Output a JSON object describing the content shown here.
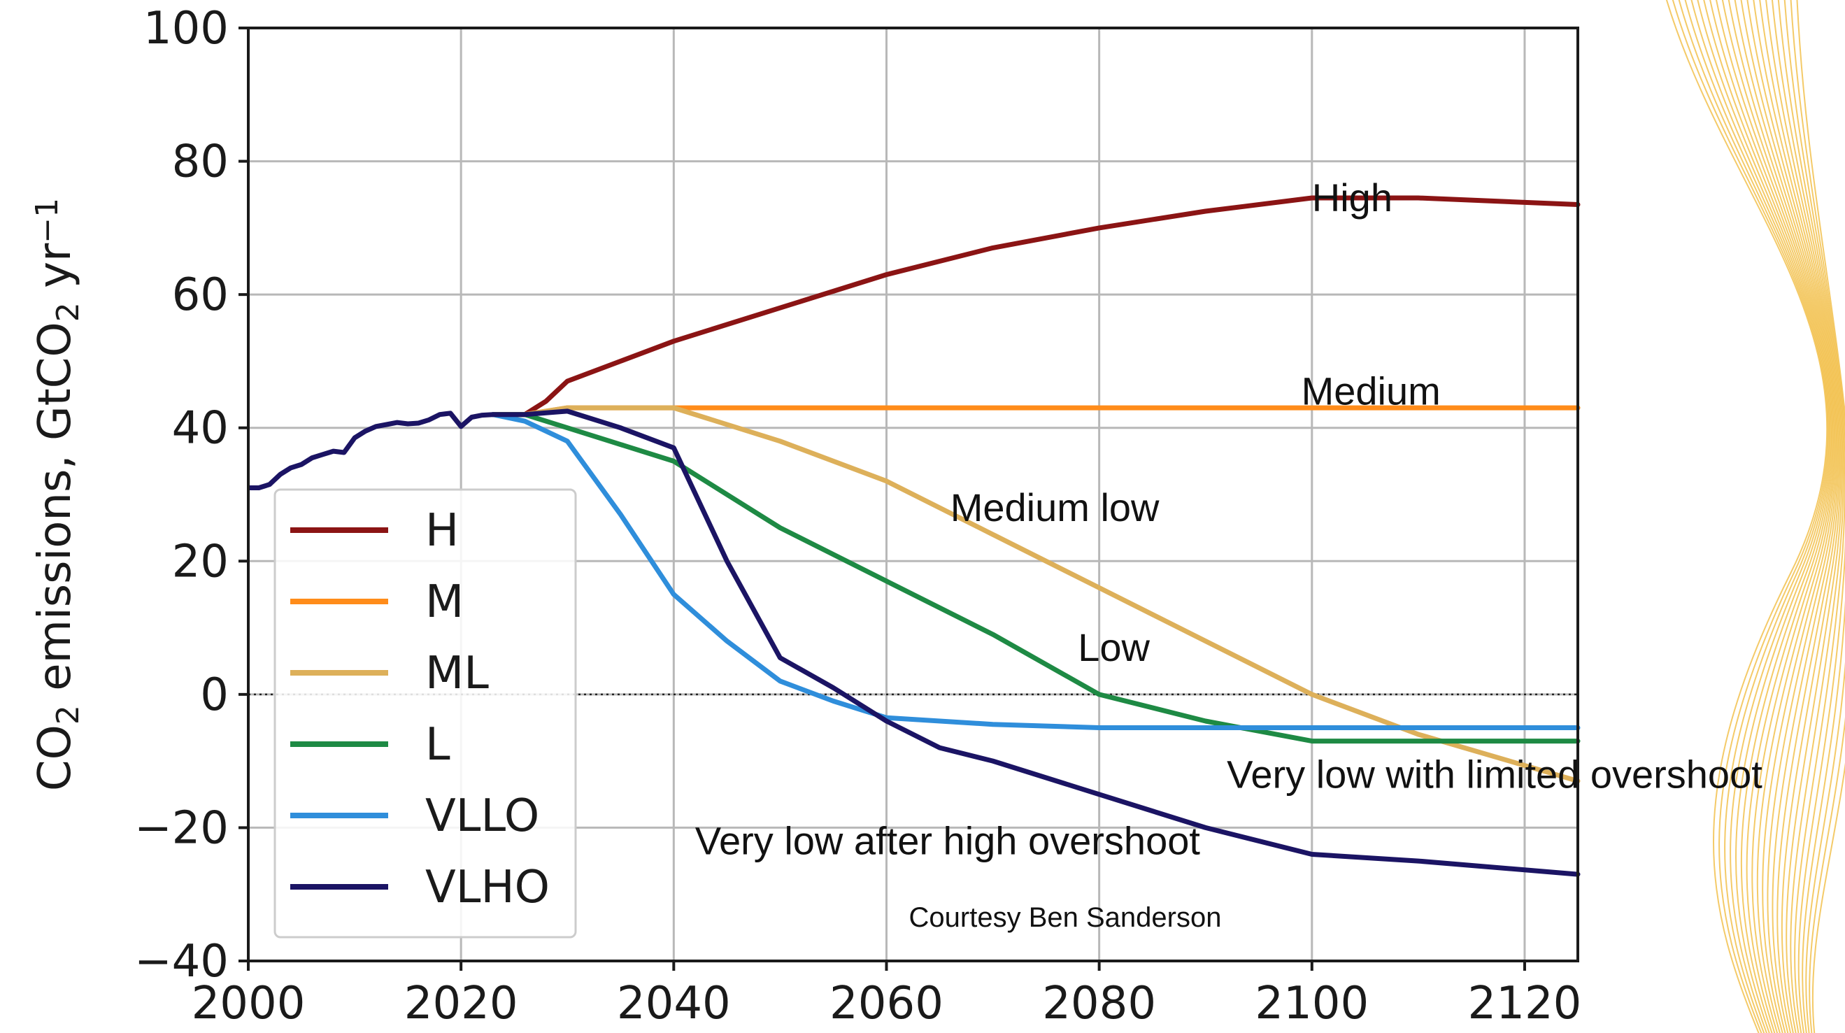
{
  "chart_data": {
    "type": "line",
    "title": "",
    "xlabel": "",
    "ylabel": "CO₂ emissions, GtCO₂ yr⁻¹",
    "ylabel_parts": [
      "CO",
      "2",
      " emissions, GtCO",
      "2",
      " yr",
      "−1"
    ],
    "xlim": [
      2000,
      2125
    ],
    "ylim": [
      -40,
      100
    ],
    "x_ticks": [
      2000,
      2020,
      2040,
      2060,
      2080,
      2100,
      2120
    ],
    "y_ticks": [
      -40,
      -20,
      0,
      20,
      40,
      60,
      80,
      100
    ],
    "x_tick_labels": [
      "2000",
      "2020",
      "2040",
      "2060",
      "2080",
      "2100",
      "2120"
    ],
    "y_tick_labels": [
      "−40",
      "−20",
      "0",
      "20",
      "40",
      "60",
      "80",
      "100"
    ],
    "grid": true,
    "zero_line": "dotted",
    "legend_position": "lower-left",
    "historical": {
      "color": "#1b1464",
      "points": [
        [
          2000,
          31
        ],
        [
          2001,
          31
        ],
        [
          2002,
          31.5
        ],
        [
          2003,
          33
        ],
        [
          2004,
          34
        ],
        [
          2005,
          34.5
        ],
        [
          2006,
          35.5
        ],
        [
          2007,
          36
        ],
        [
          2008,
          36.5
        ],
        [
          2009,
          36.3
        ],
        [
          2010,
          38.5
        ],
        [
          2011,
          39.5
        ],
        [
          2012,
          40.2
        ],
        [
          2013,
          40.5
        ],
        [
          2014,
          40.8
        ],
        [
          2015,
          40.6
        ],
        [
          2016,
          40.7
        ],
        [
          2017,
          41.2
        ],
        [
          2018,
          42
        ],
        [
          2019,
          42.2
        ],
        [
          2020,
          40.2
        ],
        [
          2021,
          41.6
        ],
        [
          2022,
          41.9
        ],
        [
          2023,
          42
        ]
      ]
    },
    "series": [
      {
        "name": "H",
        "color": "#8b1414",
        "points": [
          [
            2023,
            42
          ],
          [
            2026,
            42
          ],
          [
            2028,
            44
          ],
          [
            2030,
            47
          ],
          [
            2035,
            50
          ],
          [
            2040,
            53
          ],
          [
            2050,
            58
          ],
          [
            2060,
            63
          ],
          [
            2070,
            67
          ],
          [
            2080,
            70
          ],
          [
            2090,
            72.5
          ],
          [
            2100,
            74.5
          ],
          [
            2110,
            74.5
          ],
          [
            2125,
            73.5
          ]
        ]
      },
      {
        "name": "M",
        "color": "#ff8c1a",
        "points": [
          [
            2023,
            42
          ],
          [
            2026,
            42
          ],
          [
            2030,
            43
          ],
          [
            2125,
            43
          ]
        ]
      },
      {
        "name": "ML",
        "color": "#ddb05a",
        "points": [
          [
            2023,
            42
          ],
          [
            2026,
            42
          ],
          [
            2030,
            43
          ],
          [
            2035,
            43
          ],
          [
            2040,
            43
          ],
          [
            2050,
            38
          ],
          [
            2060,
            32
          ],
          [
            2070,
            24
          ],
          [
            2080,
            16
          ],
          [
            2090,
            8
          ],
          [
            2100,
            0
          ],
          [
            2110,
            -6
          ],
          [
            2125,
            -13
          ]
        ]
      },
      {
        "name": "L",
        "color": "#1e8a44",
        "points": [
          [
            2023,
            42
          ],
          [
            2026,
            42
          ],
          [
            2030,
            40
          ],
          [
            2040,
            35
          ],
          [
            2050,
            25
          ],
          [
            2060,
            17
          ],
          [
            2070,
            9
          ],
          [
            2080,
            0
          ],
          [
            2090,
            -4
          ],
          [
            2100,
            -7
          ],
          [
            2125,
            -7
          ]
        ]
      },
      {
        "name": "VLLO",
        "color": "#2f8edb",
        "points": [
          [
            2023,
            42
          ],
          [
            2026,
            41
          ],
          [
            2030,
            38
          ],
          [
            2035,
            27
          ],
          [
            2040,
            15
          ],
          [
            2045,
            8
          ],
          [
            2050,
            2
          ],
          [
            2055,
            -1
          ],
          [
            2060,
            -3.5
          ],
          [
            2070,
            -4.5
          ],
          [
            2080,
            -5
          ],
          [
            2125,
            -5
          ]
        ]
      },
      {
        "name": "VLHO",
        "color": "#1b1464",
        "points": [
          [
            2023,
            42
          ],
          [
            2026,
            42
          ],
          [
            2030,
            42.5
          ],
          [
            2035,
            40
          ],
          [
            2040,
            37
          ],
          [
            2045,
            20
          ],
          [
            2050,
            5.5
          ],
          [
            2055,
            1
          ],
          [
            2060,
            -4
          ],
          [
            2065,
            -8
          ],
          [
            2070,
            -10
          ],
          [
            2080,
            -15
          ],
          [
            2090,
            -20
          ],
          [
            2100,
            -24
          ],
          [
            2110,
            -25
          ],
          [
            2125,
            -27
          ]
        ]
      }
    ],
    "annotations": [
      {
        "text": "High",
        "x": 2100,
        "y": 72.5
      },
      {
        "text": "Medium",
        "x": 2099,
        "y": 43.5
      },
      {
        "text": "Medium low",
        "x": 2066,
        "y": 26
      },
      {
        "text": "Low",
        "x": 2078,
        "y": 5
      },
      {
        "text": "Very low with limited overshoot",
        "x": 2092,
        "y": -14
      },
      {
        "text": "Very low after high overshoot",
        "x": 2042,
        "y": -24
      }
    ],
    "credit": "Courtesy Ben Sanderson"
  }
}
